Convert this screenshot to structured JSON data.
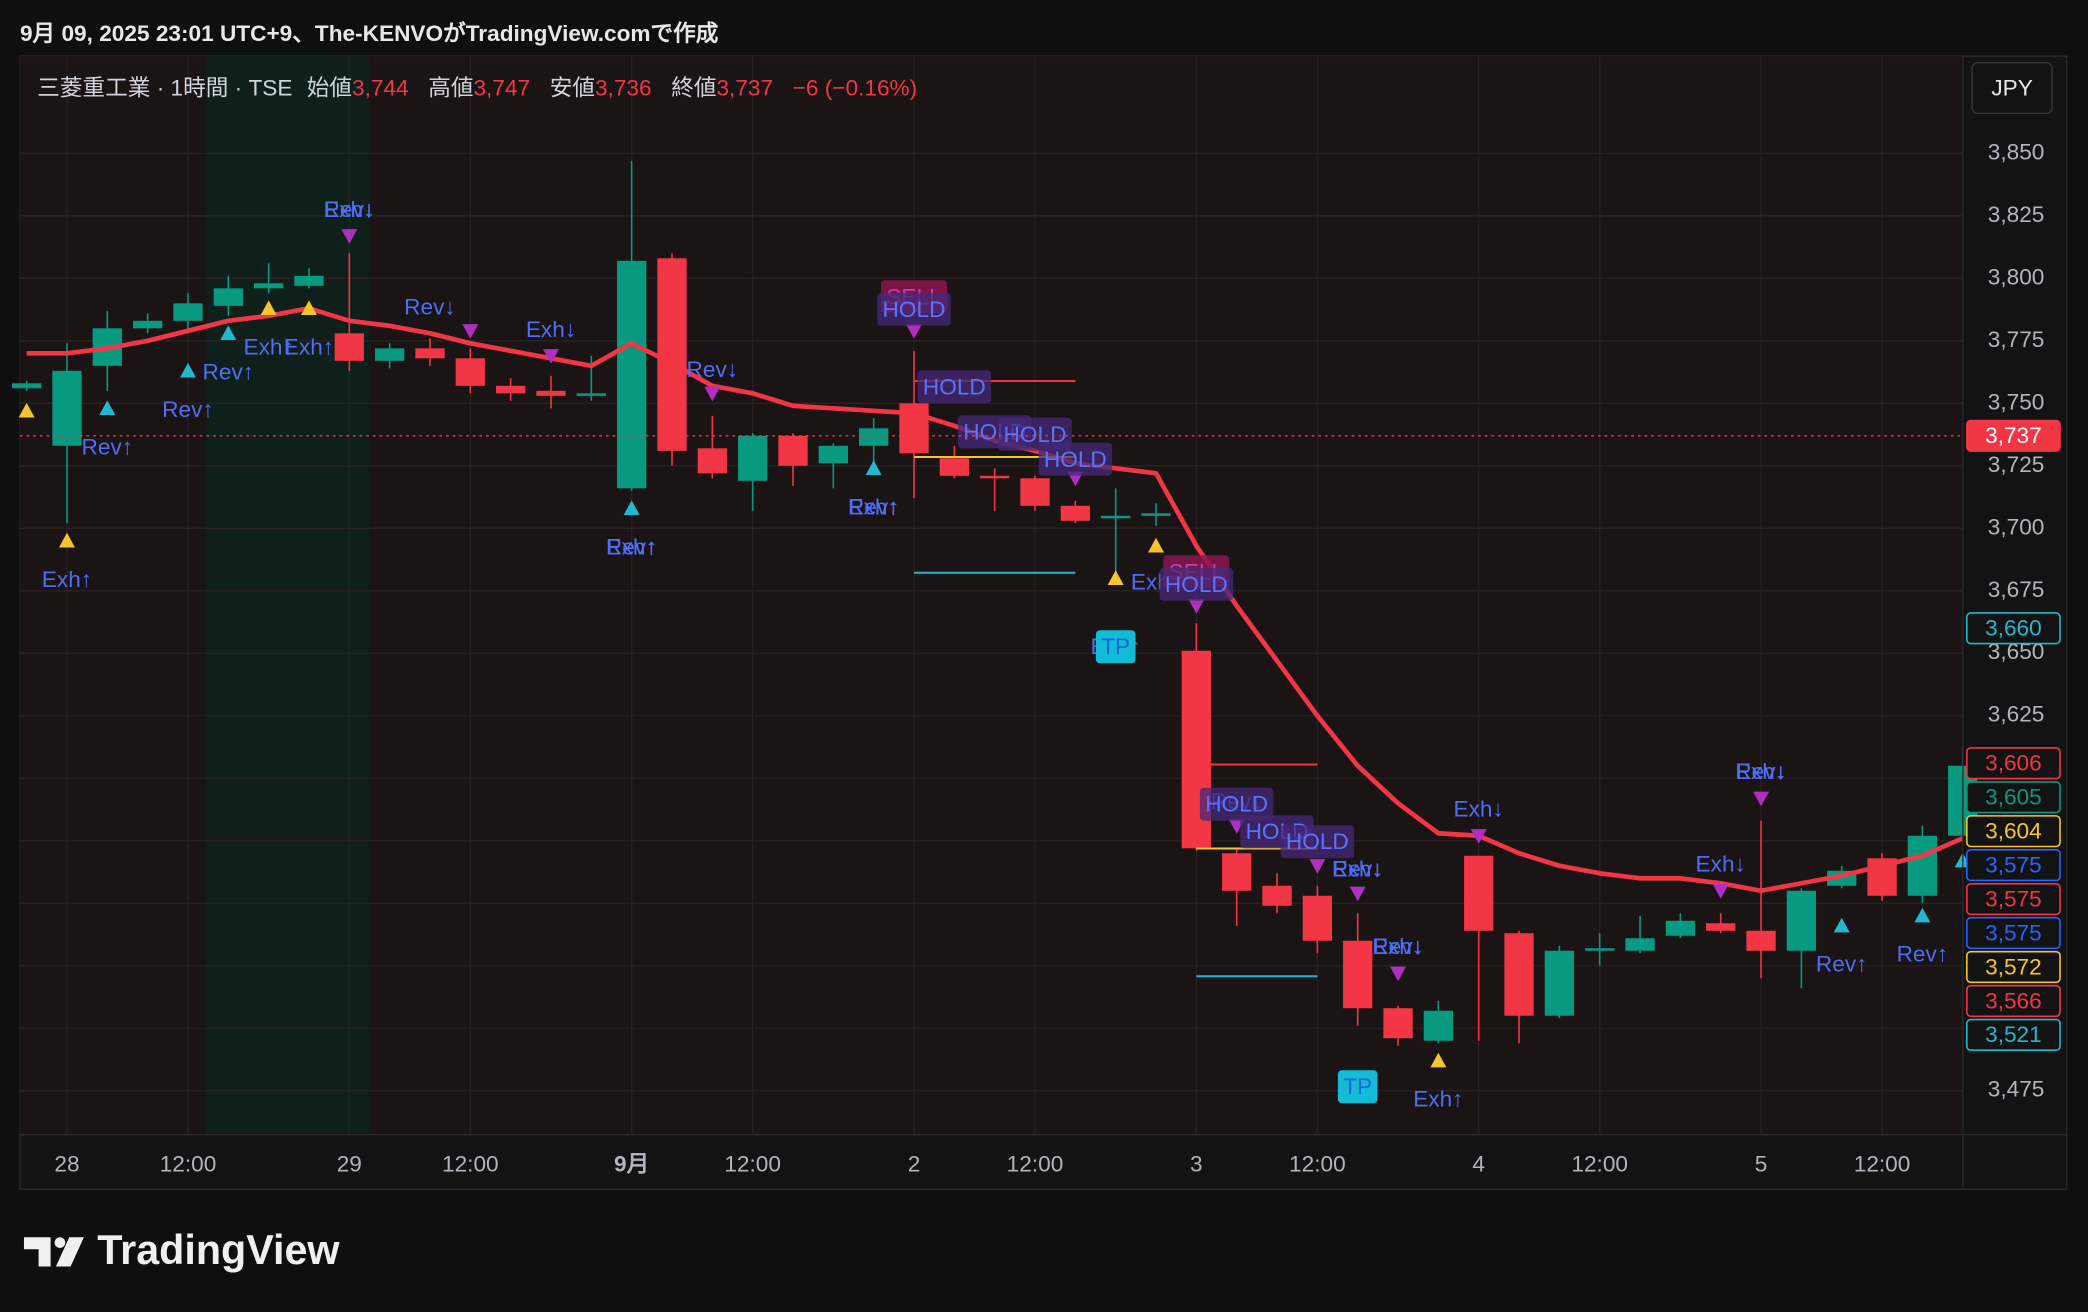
{
  "header": {
    "caption": "9月 09, 2025 23:01 UTC+9、The-KENVOがTradingView.comで作成"
  },
  "chart_data": {
    "type": "candlestick",
    "title": "三菱重工業 · 1時間 · TSE",
    "legend": [
      {
        "name": "始値",
        "value": {
          "value": 3744,
          "label": "3,744"
        }
      },
      {
        "name": "高値",
        "value": {
          "value": 3747,
          "label": "3,747"
        }
      },
      {
        "name": "安値",
        "value": {
          "value": 3736,
          "label": "3,736"
        }
      },
      {
        "name": "終値",
        "value": {
          "value": 3737,
          "label": "3,737"
        }
      }
    ],
    "change": "−6 (−0.16%)",
    "currency": "JPY",
    "categories": [
      null,
      "28",
      null,
      null,
      "12:00",
      null,
      null,
      null,
      "29",
      null,
      null,
      "12:00",
      null,
      null,
      null,
      "9月",
      null,
      null,
      "12:00",
      null,
      null,
      null,
      "2",
      null,
      null,
      "12:00",
      null,
      null,
      null,
      "3",
      null,
      null,
      "12:00",
      null,
      null,
      null,
      "4",
      null,
      null,
      "12:00",
      null,
      null,
      null,
      "5",
      null,
      null,
      "12:00",
      null,
      null
    ],
    "open": [
      3756,
      3733,
      3765,
      3780,
      3783,
      3789,
      3796,
      3797,
      3778,
      3767,
      3772,
      3768,
      3757,
      3755,
      3753,
      3716,
      3808,
      3732,
      3719,
      3737,
      3726,
      3733,
      3750,
      3728,
      3721,
      3720,
      3709,
      3704,
      3705,
      3651,
      3570,
      3557,
      3553,
      3535,
      3508,
      3495,
      3569,
      3538,
      3505,
      3531,
      3531,
      3537,
      3542,
      3539,
      3531,
      3557,
      3568,
      3553,
      3577
    ],
    "high": [
      3759,
      3774,
      3787,
      3786,
      3794,
      3801,
      3806,
      3804,
      3810,
      3774,
      3776,
      3772,
      3760,
      3761,
      3769,
      3847,
      3810,
      3745,
      3738,
      3738,
      3734,
      3744,
      3771,
      3733,
      3724,
      3721,
      3711,
      3716,
      3710,
      3662,
      3572,
      3562,
      3557,
      3546,
      3509,
      3511,
      3569,
      3539,
      3533,
      3538,
      3545,
      3546,
      3546,
      3583,
      3556,
      3565,
      3570,
      3581,
      3612
    ],
    "low": [
      3755,
      3702,
      3755,
      3778,
      3778,
      3785,
      3794,
      3796,
      3763,
      3764,
      3765,
      3754,
      3751,
      3748,
      3751,
      3715,
      3725,
      3720,
      3707,
      3717,
      3716,
      3726,
      3712,
      3720,
      3707,
      3707,
      3702,
      3679,
      3701,
      3571,
      3541,
      3546,
      3530,
      3501,
      3493,
      3494,
      3495,
      3494,
      3504,
      3525,
      3530,
      3536,
      3538,
      3520,
      3516,
      3556,
      3551,
      3550,
      3575
    ],
    "close": [
      3758,
      3763,
      3780,
      3783,
      3790,
      3796,
      3798,
      3801,
      3767,
      3772,
      3768,
      3757,
      3754,
      3753,
      3754,
      3807,
      3731,
      3722,
      3737,
      3725,
      3733,
      3740,
      3730,
      3721,
      3720,
      3709,
      3703,
      3705,
      3706,
      3572,
      3555,
      3549,
      3535,
      3508,
      3496,
      3507,
      3539,
      3505,
      3531,
      3532,
      3536,
      3543,
      3539,
      3531,
      3555,
      3563,
      3553,
      3577,
      3605
    ],
    "up_color": "#089981",
    "down_color": "#f23645",
    "overlay": {
      "values": [
        3770,
        3770,
        3772,
        3775,
        3779,
        3783,
        3785,
        3788,
        3783,
        3781,
        3778,
        3774,
        3771,
        3768,
        3765,
        3774,
        3766,
        3757,
        3754,
        3749,
        3748,
        3747,
        3746,
        3741,
        3735,
        3731,
        3726,
        3724,
        3722,
        3693,
        3669,
        3647,
        3625,
        3605,
        3590,
        3578,
        3577,
        3570,
        3565,
        3562,
        3560,
        3560,
        3558,
        3555,
        3558,
        3561,
        3565,
        3569,
        3576
      ],
      "color": "#f23645"
    },
    "ylim": [
      3457.4,
      3888.9
    ],
    "yticks": [
      {
        "value": 3475,
        "label": "3,475"
      },
      {
        "value": 3500,
        "label": null
      },
      {
        "value": 3525,
        "label": null
      },
      {
        "value": 3550,
        "label": null
      },
      {
        "value": 3575,
        "label": null
      },
      {
        "value": 3600,
        "label": null
      },
      {
        "value": 3625,
        "label": "3,625"
      },
      {
        "value": 3650,
        "label": "3,650"
      },
      {
        "value": 3675,
        "label": "3,675"
      },
      {
        "value": 3700,
        "label": "3,700"
      },
      {
        "value": 3725,
        "label": "3,725"
      },
      {
        "value": 3750,
        "label": "3,750"
      },
      {
        "value": 3775,
        "label": "3,775"
      },
      {
        "value": 3800,
        "label": "3,800"
      },
      {
        "value": 3825,
        "label": "3,825"
      },
      {
        "value": 3850,
        "label": "3,850"
      }
    ],
    "grid": true,
    "price_badges": [
      {
        "value": 3737,
        "label": "3,737",
        "color": "#f23645",
        "filled": true
      },
      {
        "value": 3660,
        "label": "3,660",
        "color": "#22b8cf"
      },
      {
        "value": 3606,
        "label": "3,606",
        "color": "#f23645"
      },
      {
        "value": 3605,
        "label": "3,605",
        "color": "#089981"
      },
      {
        "value": 3604,
        "label": "3,604",
        "color": "#f7c52b"
      },
      {
        "value": 3575,
        "label": "3,575",
        "color": "#2962ff"
      },
      {
        "value": 3575,
        "label": "3,575",
        "color": "#f23645"
      },
      {
        "value": 3575,
        "label": "3,575",
        "color": "#2962ff"
      },
      {
        "value": 3572,
        "label": "3,572",
        "color": "#f7c52b"
      },
      {
        "value": 3566,
        "label": "3,566",
        "color": "#f23645"
      },
      {
        "value": 3521,
        "label": "3,521",
        "color": "#22b8cf"
      }
    ],
    "levels": [
      {
        "from": 22,
        "to": 26,
        "value": 3758.9,
        "color": "#f23645"
      },
      {
        "from": 22,
        "to": 26,
        "value": 3728.5,
        "color": "#f7c52b"
      },
      {
        "from": 22,
        "to": 26,
        "value": 3682.2,
        "color": "#22b8cf"
      },
      {
        "from": 29,
        "to": 32,
        "value": 3605.5,
        "color": "#f23645"
      },
      {
        "from": 29,
        "to": 32,
        "value": 3571.9,
        "color": "#f7c52b"
      },
      {
        "from": 29,
        "to": 32,
        "value": 3520.8,
        "color": "#22b8cf"
      }
    ],
    "markers": [
      {
        "index": 0,
        "price": 3747,
        "shape": "up",
        "color": "#f7c52b"
      },
      {
        "index": 1,
        "price": 3695,
        "shape": "up",
        "color": "#f7c52b"
      },
      {
        "index": 6,
        "price": 3788,
        "shape": "up",
        "color": "#f7c52b"
      },
      {
        "index": 7,
        "price": 3788,
        "shape": "up",
        "color": "#f7c52b"
      },
      {
        "index": 27,
        "price": 3680,
        "shape": "up",
        "color": "#f7c52b"
      },
      {
        "index": 28,
        "price": 3693,
        "shape": "up",
        "color": "#f7c52b"
      },
      {
        "index": 35,
        "price": 3487,
        "shape": "up",
        "color": "#f7c52b"
      },
      {
        "index": 2,
        "price": 3748,
        "shape": "up",
        "color": "#22b8cf"
      },
      {
        "index": 5,
        "price": 3778,
        "shape": "up",
        "color": "#22b8cf"
      },
      {
        "index": 4,
        "price": 3763,
        "shape": "up",
        "color": "#22b8cf"
      },
      {
        "index": 15,
        "price": 3708,
        "shape": "up",
        "color": "#22b8cf"
      },
      {
        "index": 21,
        "price": 3724,
        "shape": "up",
        "color": "#22b8cf"
      },
      {
        "index": 45,
        "price": 3541,
        "shape": "up",
        "color": "#22b8cf"
      },
      {
        "index": 47,
        "price": 3545,
        "shape": "up",
        "color": "#22b8cf"
      },
      {
        "index": 48,
        "price": 3567,
        "shape": "up",
        "color": "#22b8cf"
      },
      {
        "index": 8,
        "price": 3817,
        "shape": "down",
        "color": "#b02fc2"
      },
      {
        "index": 11,
        "price": 3779,
        "shape": "down",
        "color": "#b02fc2"
      },
      {
        "index": 13,
        "price": 3769,
        "shape": "down",
        "color": "#b02fc2"
      },
      {
        "index": 17,
        "price": 3754,
        "shape": "down",
        "color": "#b02fc2"
      },
      {
        "index": 22,
        "price": 3779,
        "shape": "down",
        "color": "#b02fc2"
      },
      {
        "index": 26,
        "price": 3720,
        "shape": "down",
        "color": "#b02fc2"
      },
      {
        "index": 29,
        "price": 3669,
        "shape": "down",
        "color": "#b02fc2"
      },
      {
        "index": 30,
        "price": 3581,
        "shape": "down",
        "color": "#b02fc2"
      },
      {
        "index": 32,
        "price": 3565,
        "shape": "down",
        "color": "#b02fc2"
      },
      {
        "index": 33,
        "price": 3554,
        "shape": "down",
        "color": "#b02fc2"
      },
      {
        "index": 34,
        "price": 3522,
        "shape": "down",
        "color": "#b02fc2"
      },
      {
        "index": 36,
        "price": 3577,
        "shape": "down",
        "color": "#b02fc2"
      },
      {
        "index": 42,
        "price": 3555,
        "shape": "down",
        "color": "#b02fc2"
      },
      {
        "index": 43,
        "price": 3592,
        "shape": "down",
        "color": "#b02fc2"
      }
    ],
    "annotations": [
      {
        "text": "Exh↑",
        "index": 1,
        "price": 3679,
        "kind": "label"
      },
      {
        "text": "Rev↑",
        "index": 2,
        "price": 3732,
        "kind": "label"
      },
      {
        "text": "Rev↑",
        "index": 4,
        "price": 3747,
        "kind": "label"
      },
      {
        "text": "Rev↑",
        "index": 5,
        "price": 3762,
        "kind": "label"
      },
      {
        "text": "Exh↑",
        "index": 6,
        "price": 3772,
        "kind": "label"
      },
      {
        "text": "Exh↑",
        "index": 7,
        "price": 3772,
        "kind": "label"
      },
      {
        "text": "Rev↓",
        "index": 8,
        "price": 3827,
        "kind": "label"
      },
      {
        "text": "Exh↓",
        "index": 8,
        "price": 3827,
        "kind": "label"
      },
      {
        "text": "Rev↓",
        "index": 10,
        "price": 3788,
        "kind": "label"
      },
      {
        "text": "Exh↓",
        "index": 13,
        "price": 3779,
        "kind": "label"
      },
      {
        "text": "Rev↑",
        "index": 15,
        "price": 3692,
        "kind": "label"
      },
      {
        "text": "Exh↑",
        "index": 15,
        "price": 3692,
        "kind": "label"
      },
      {
        "text": "Rev↓",
        "index": 17,
        "price": 3763,
        "kind": "label"
      },
      {
        "text": "Rev↑",
        "index": 21,
        "price": 3708,
        "kind": "label"
      },
      {
        "text": "Exh↑",
        "index": 21,
        "price": 3708,
        "kind": "label"
      },
      {
        "text": "SELL",
        "index": 22,
        "price": 3792,
        "kind": "sell"
      },
      {
        "text": "HOLD",
        "index": 22,
        "price": 3787,
        "kind": "hold"
      },
      {
        "text": "HOLD",
        "index": 23,
        "price": 3756,
        "kind": "hold"
      },
      {
        "text": "HOLD",
        "index": 24,
        "price": 3738,
        "kind": "hold"
      },
      {
        "text": "HOLD",
        "index": 25,
        "price": 3737,
        "kind": "hold"
      },
      {
        "text": "HOLD",
        "index": 26,
        "price": 3727,
        "kind": "hold"
      },
      {
        "text": "Exh↑",
        "index": 27,
        "price": 3652,
        "kind": "label"
      },
      {
        "text": "TP",
        "index": 27,
        "price": 3652,
        "kind": "tp"
      },
      {
        "text": "Exh↑",
        "index": 28,
        "price": 3678,
        "kind": "label"
      },
      {
        "text": "SELL",
        "index": 29,
        "price": 3682,
        "kind": "sell"
      },
      {
        "text": "HOLD",
        "index": 29,
        "price": 3677,
        "kind": "hold"
      },
      {
        "text": "Rev↓",
        "index": 30,
        "price": 3590,
        "kind": "label"
      },
      {
        "text": "HOLD",
        "index": 30,
        "price": 3589,
        "kind": "hold"
      },
      {
        "text": "HOLD",
        "index": 31,
        "price": 3578,
        "kind": "hold"
      },
      {
        "text": "HOLD",
        "index": 32,
        "price": 3574,
        "kind": "hold"
      },
      {
        "text": "Rev↓",
        "index": 33,
        "price": 3563,
        "kind": "label"
      },
      {
        "text": "Exh↓",
        "index": 33,
        "price": 3563,
        "kind": "label"
      },
      {
        "text": "Rev↓",
        "index": 34,
        "price": 3532,
        "kind": "label"
      },
      {
        "text": "Exh↓",
        "index": 34,
        "price": 3532,
        "kind": "label"
      },
      {
        "text": "TP",
        "index": 33,
        "price": 3476,
        "kind": "tp"
      },
      {
        "text": "Exh↑",
        "index": 35,
        "price": 3471,
        "kind": "label"
      },
      {
        "text": "Exh↓",
        "index": 36,
        "price": 3587,
        "kind": "label"
      },
      {
        "text": "Exh↓",
        "index": 42,
        "price": 3565,
        "kind": "label"
      },
      {
        "text": "Rev↓",
        "index": 43,
        "price": 3602,
        "kind": "label"
      },
      {
        "text": "Exh↓",
        "index": 43,
        "price": 3602,
        "kind": "label"
      },
      {
        "text": "Rev↑",
        "index": 45,
        "price": 3525,
        "kind": "label"
      },
      {
        "text": "Rev↑",
        "index": 47,
        "price": 3529,
        "kind": "label"
      }
    ]
  },
  "footer": {
    "brand": "TradingView"
  }
}
